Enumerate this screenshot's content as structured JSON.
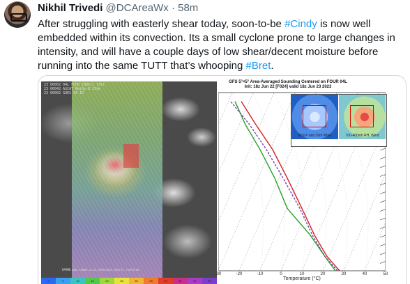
{
  "tweet": {
    "author_name": "Nikhil Trivedi",
    "author_handle": "@DCAreaWx",
    "separator": "·",
    "time": "58m",
    "text_parts": [
      {
        "t": "After struggling with easterly shear today, soon-to-be ",
        "tag": false
      },
      {
        "t": "#Cindy",
        "tag": true
      },
      {
        "t": " is now well embedded within its convection. Its a small cyclone prone to large changes in intensity, and will have a couple days of low shear/decent moisture before running into the same TUTT that’s whooping ",
        "tag": false
      },
      {
        "t": "#Bret",
        "tag": true
      },
      {
        "t": ".",
        "tag": false
      }
    ]
  },
  "satellite": {
    "label_lines": [
      "23 00002 04L FOUR 100kts 15kt",
      "23 00042 ASCAT MetOp-B 25km",
      "23 00002 GOES-16 IR"
    ],
    "credit": "RAMMB www.rammb.cira.colostate.edu/tc_realtime",
    "colorbar_ticks": [
      "0",
      "5",
      "10",
      "15",
      "20",
      "25",
      "30",
      "35",
      "40",
      "45",
      "50",
      "55"
    ],
    "colorbar_colors": [
      "#2a6af0",
      "#3ca0f0",
      "#39c6c0",
      "#52c84a",
      "#a3d63c",
      "#e7e33a",
      "#f0b437",
      "#ef7c2c",
      "#e23c2a",
      "#c92e8a",
      "#a93bc9",
      "#7b3fc9"
    ]
  },
  "sounding": {
    "title": "GFS 5°×5° Area-Averaged Sounding Centered on FOUR 04L",
    "subtitle": "Init: 18z Jun 22 [F024] valid 18z Jun 23 2023",
    "inset1_label": "MSLP and 10m Wind",
    "inset2_label": "700-400mb RH, Wind",
    "xlabel": "Temperature (°C)"
  },
  "chart_data": {
    "type": "line",
    "title": "GFS 5°×5° Area-Averaged Sounding Centered on FOUR 04L",
    "xlabel": "Temperature (°C)",
    "ylabel": "",
    "xlim": [
      -30,
      50
    ],
    "x_ticks": [
      -30,
      -20,
      -10,
      0,
      10,
      20,
      30,
      40,
      50
    ],
    "series": [
      {
        "name": "",
        "color": "#d42020",
        "points": [
          [
            28,
            0
          ],
          [
            22,
            0.08
          ],
          [
            16,
            0.2
          ],
          [
            10,
            0.35
          ],
          [
            3,
            0.52
          ],
          [
            -4,
            0.68
          ],
          [
            -12,
            0.82
          ],
          [
            -19,
            0.95
          ]
        ]
      },
      {
        "name": "",
        "color": "#22a022",
        "points": [
          [
            26,
            0
          ],
          [
            21,
            0.08
          ],
          [
            14,
            0.2
          ],
          [
            3,
            0.35
          ],
          [
            -3,
            0.52
          ],
          [
            -10,
            0.68
          ],
          [
            -17,
            0.82
          ],
          [
            -22,
            0.95
          ]
        ]
      },
      {
        "name": "",
        "color": "#7a3fb0",
        "points": [
          [
            27,
            0
          ],
          [
            21,
            0.08
          ],
          [
            15,
            0.2
          ],
          [
            9,
            0.35
          ],
          [
            1,
            0.52
          ],
          [
            -7,
            0.68
          ],
          [
            -15,
            0.82
          ],
          [
            -24,
            0.95
          ]
        ]
      }
    ]
  }
}
